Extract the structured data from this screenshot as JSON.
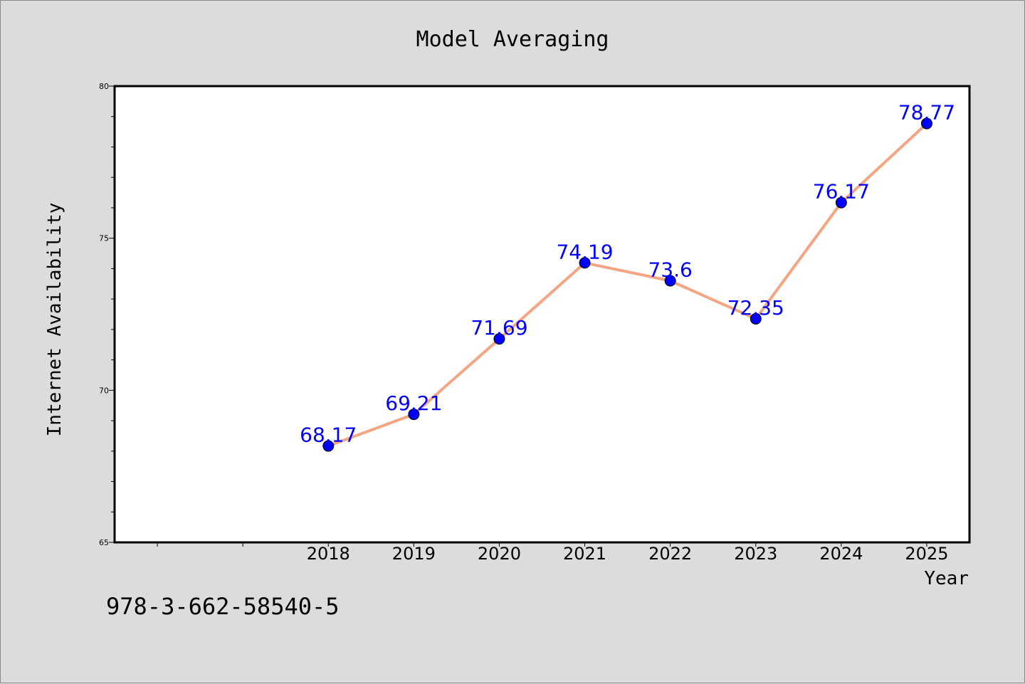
{
  "chart_data": {
    "type": "line",
    "title": "Model Averaging",
    "xlabel": "Year",
    "ylabel": "Internet Availability",
    "x": [
      2018,
      2019,
      2020,
      2021,
      2022,
      2023,
      2024,
      2025
    ],
    "x_tick_labels": [
      "2018",
      "2019",
      "2020",
      "2021",
      "2022",
      "2023",
      "2024",
      "2025"
    ],
    "x_range": [
      2015.5,
      2025.5
    ],
    "y_tick_labels": [
      "65",
      "70",
      "75",
      "80"
    ],
    "ylim": [
      65,
      80
    ],
    "series": [
      {
        "values": [
          68.17,
          69.21,
          71.69,
          74.19,
          73.6,
          72.35,
          76.17,
          78.77
        ],
        "data_labels": [
          "68.17",
          "69.21",
          "71.69",
          "74.19",
          "73.6",
          "72.35",
          "76.17",
          "78.77"
        ],
        "line_color": "#f4a582",
        "marker_color": "#0000ff"
      }
    ],
    "label_color": "#0000ff",
    "grid": false,
    "legend": "none"
  },
  "footer_note": "978-3-662-58540-5",
  "colors": {
    "background": "#dcdcdc",
    "plot_area": "#ffffff",
    "axis": "#000000"
  }
}
